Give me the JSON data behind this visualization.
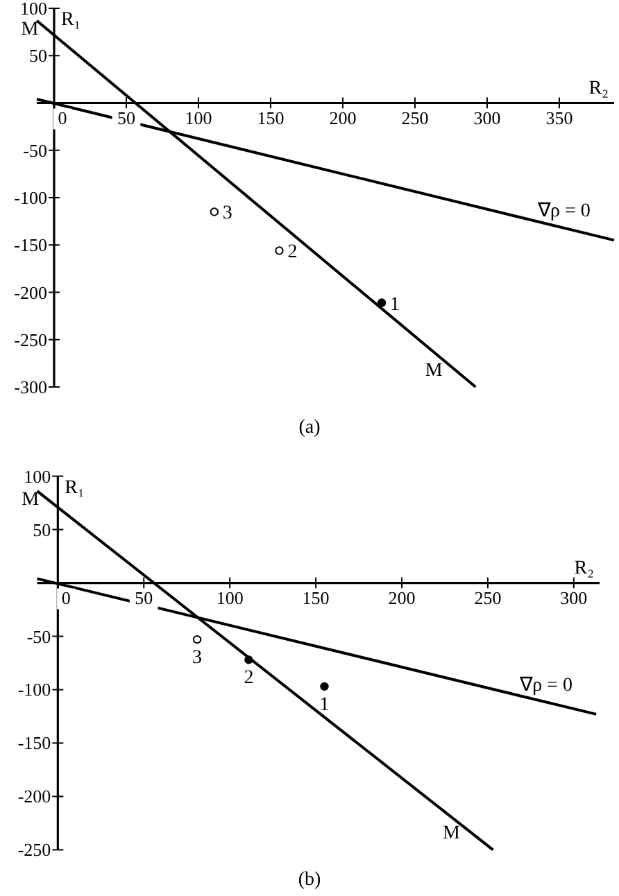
{
  "chart_data": [
    {
      "type": "line",
      "title": "(a)",
      "xlabel": "R₂",
      "ylabel": "R₁",
      "xlim": [
        -12,
        388
      ],
      "ylim": [
        -300,
        100
      ],
      "xticks": [
        0,
        50,
        100,
        150,
        200,
        250,
        300,
        350
      ],
      "yticks": [
        -300,
        -250,
        -200,
        -150,
        -100,
        -50,
        50,
        100
      ],
      "grid": false,
      "series": [
        {
          "name": "M",
          "color": "#000000",
          "x": [
            -12,
            292
          ],
          "values": [
            87,
            -300
          ]
        },
        {
          "name": "∇ρ = 0",
          "color": "#000000",
          "x": [
            -12,
            388
          ],
          "values": [
            4,
            -145
          ]
        },
        {
          "type": "scatter",
          "marker": "circle",
          "color": "#000000",
          "x": [
            227
          ],
          "values": [
            -211
          ]
        },
        {
          "type": "scatter",
          "marker": "circle",
          "color": "#ffffff",
          "x": [
            156,
            111
          ],
          "values": [
            -156,
            -115
          ]
        }
      ],
      "annotations": [
        {
          "text": "M",
          "x": -12,
          "y": 87
        },
        {
          "text": "1",
          "x": 227,
          "y": -211
        },
        {
          "text": "2",
          "x": 156,
          "y": -156
        },
        {
          "text": "3",
          "x": 111,
          "y": -115
        }
      ]
    },
    {
      "type": "line",
      "title": "(b)",
      "xlabel": "R₂",
      "ylabel": "R₁",
      "xlim": [
        -12,
        315
      ],
      "ylim": [
        -250,
        100
      ],
      "xticks": [
        0,
        50,
        100,
        150,
        200,
        250,
        300
      ],
      "yticks": [
        -250,
        -200,
        -150,
        -100,
        -50,
        50,
        100
      ],
      "grid": false,
      "series": [
        {
          "name": "M",
          "color": "#000000",
          "x": [
            -12,
            253
          ],
          "values": [
            86,
            -250
          ]
        },
        {
          "name": "∇ρ = 0",
          "color": "#000000",
          "x": [
            -12,
            313
          ],
          "values": [
            4,
            -123
          ]
        },
        {
          "type": "scatter",
          "marker": "circle",
          "color": "#000000",
          "x": [
            155,
            111
          ],
          "values": [
            -97,
            -72
          ]
        },
        {
          "type": "scatter",
          "marker": "circle",
          "color": "#ffffff",
          "x": [
            81
          ],
          "values": [
            -53
          ]
        }
      ],
      "annotations": [
        {
          "text": "M",
          "x": -12,
          "y": 86
        },
        {
          "text": "1",
          "x": 155,
          "y": -97
        },
        {
          "text": "2",
          "x": 111,
          "y": -72
        },
        {
          "text": "3",
          "x": 81,
          "y": -53
        }
      ]
    }
  ]
}
